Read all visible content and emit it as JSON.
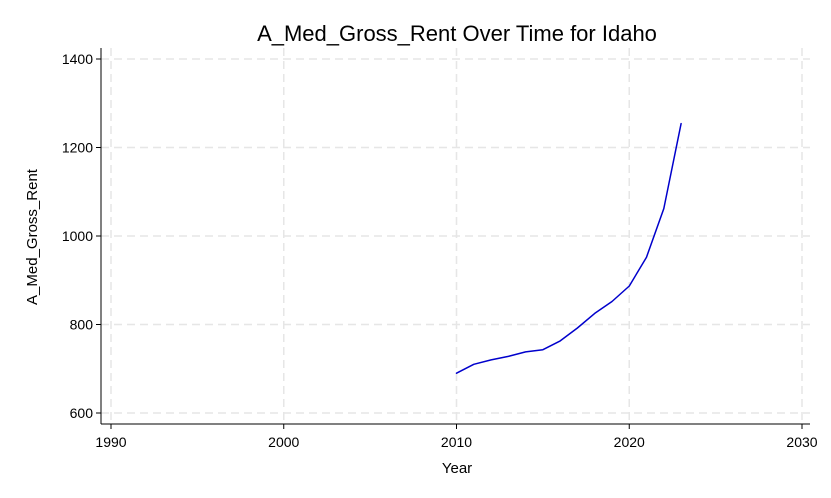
{
  "chart_data": {
    "type": "line",
    "title": "A_Med_Gross_Rent Over Time for Idaho",
    "xlabel": "Year",
    "ylabel": "A_Med_Gross_Rent",
    "xlim": [
      1990,
      2030
    ],
    "ylim": [
      600,
      1400
    ],
    "xticks": [
      1990,
      2000,
      2010,
      2020,
      2030
    ],
    "yticks": [
      600,
      800,
      1000,
      1200,
      1400
    ],
    "grid": true,
    "series": [
      {
        "color": "#0000cc",
        "x": [
          2010,
          2011,
          2012,
          2013,
          2014,
          2015,
          2016,
          2017,
          2018,
          2019,
          2020,
          2021,
          2022,
          2023
        ],
        "y": [
          690,
          710,
          720,
          728,
          738,
          743,
          763,
          792,
          825,
          852,
          887,
          952,
          1062,
          1254
        ]
      }
    ]
  }
}
